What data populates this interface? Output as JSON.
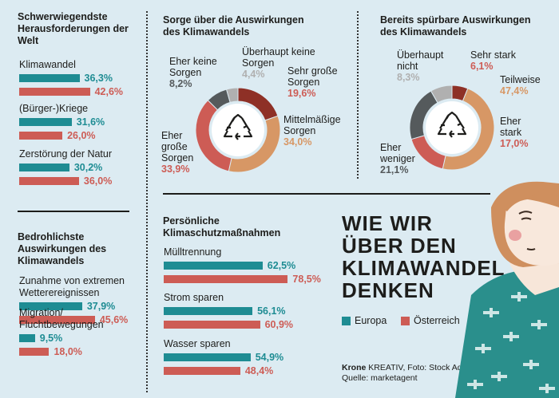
{
  "colors": {
    "europa": "#1e8c93",
    "oesterreich": "#cd5c55"
  },
  "legend": {
    "europa": "Europa",
    "oesterreich": "Österreich"
  },
  "main_title": [
    "WIE WIR",
    "ÜBER DEN",
    "KLIMAWANDEL",
    "DENKEN"
  ],
  "source": {
    "brand": "Krone",
    "credit": "KREATIV, Foto: Stock Adobe",
    "quelle": "Quelle: marketagent"
  },
  "chart_data": [
    {
      "type": "bar",
      "title": "Schwerwiegendste Herausforderungen der Welt",
      "categories": [
        "Klimawandel",
        "(Bürger-)Kriege",
        "Zerstörung der Natur"
      ],
      "series": [
        {
          "name": "Europa",
          "values": [
            36.3,
            31.6,
            30.2
          ],
          "labels": [
            "36,3%",
            "31,6%",
            "30,2%"
          ]
        },
        {
          "name": "Österreich",
          "values": [
            42.6,
            26.0,
            36.0
          ],
          "labels": [
            "42,6%",
            "26,0%",
            "36,0%"
          ]
        }
      ]
    },
    {
      "type": "bar",
      "title": "Bedrohlichste Auswirkungen des Klimawandels",
      "categories": [
        "Zunahme von extremen Wetterereignissen",
        "Migration/ Fluchtbewegungen"
      ],
      "series": [
        {
          "name": "Europa",
          "values": [
            37.9,
            9.5
          ],
          "labels": [
            "37,9%",
            "9,5%"
          ]
        },
        {
          "name": "Österreich",
          "values": [
            45.6,
            18.0
          ],
          "labels": [
            "45,6%",
            "18,0%"
          ]
        }
      ]
    },
    {
      "type": "pie",
      "title": "Sorge über die Auswirkungen des Klimawandels",
      "slices": [
        {
          "name": "Sehr große Sorgen",
          "value": 19.6,
          "label": "19,6%",
          "color": "#8e3026"
        },
        {
          "name": "Mittelmäßige Sorgen",
          "value": 34.0,
          "label": "34,0%",
          "color": "#d79765"
        },
        {
          "name": "Eher große Sorgen",
          "value": 33.9,
          "label": "33,9%",
          "color": "#cd5c55"
        },
        {
          "name": "Eher keine Sorgen",
          "value": 8.2,
          "label": "8,2%",
          "color": "#555a5c"
        },
        {
          "name": "Überhaupt keine Sorgen",
          "value": 4.4,
          "label": "4,4%",
          "color": "#b0b0b0"
        }
      ]
    },
    {
      "type": "pie",
      "title": "Bereits spürbare Auswirkungen des Klimawandels",
      "slices": [
        {
          "name": "Sehr stark",
          "value": 6.1,
          "label": "6,1%",
          "color": "#8e3026"
        },
        {
          "name": "Teilweise",
          "value": 47.4,
          "label": "47,4%",
          "color": "#d79765"
        },
        {
          "name": "Eher stark",
          "value": 17.0,
          "label": "17,0%",
          "color": "#cd5c55"
        },
        {
          "name": "Eher weniger",
          "value": 21.1,
          "label": "21,1%",
          "color": "#555a5c"
        },
        {
          "name": "Überhaupt nicht",
          "value": 8.3,
          "label": "8,3%",
          "color": "#b0b0b0"
        }
      ]
    },
    {
      "type": "bar",
      "title": "Persönliche Klimaschutzmaßnahmen",
      "categories": [
        "Mülltrennung",
        "Strom sparen",
        "Wasser sparen"
      ],
      "series": [
        {
          "name": "Europa",
          "values": [
            62.5,
            56.1,
            54.9
          ],
          "labels": [
            "62,5%",
            "56,1%",
            "54,9%"
          ]
        },
        {
          "name": "Österreich",
          "values": [
            78.5,
            60.9,
            48.4
          ],
          "labels": [
            "78,5%",
            "60,9%",
            "48,4%"
          ]
        }
      ]
    }
  ]
}
